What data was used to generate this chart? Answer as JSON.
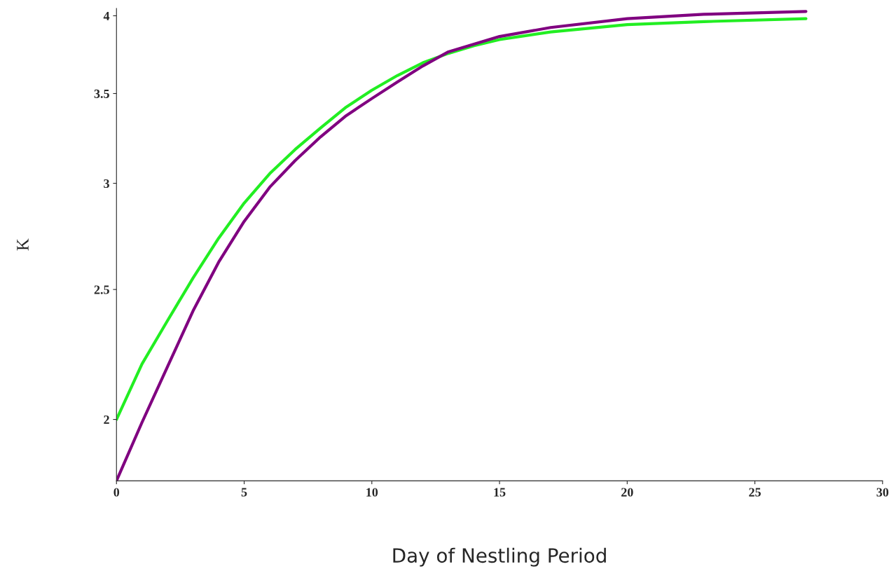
{
  "chart_data": {
    "type": "line",
    "xlabel": "Day of Nestling Period",
    "ylabel": "K",
    "log": "y",
    "xlim": [
      0,
      30
    ],
    "xticks": [
      0,
      5,
      10,
      15,
      20,
      25,
      30
    ],
    "ylim": [
      1.8,
      4.05
    ],
    "yticks": [
      2,
      2.5,
      3,
      3.5,
      4
    ],
    "grid": false,
    "marker": "none",
    "line_style": "solid",
    "x": [
      0,
      1,
      2,
      3,
      4,
      5,
      6,
      7,
      8,
      9,
      10,
      11,
      12,
      13,
      14,
      15,
      17,
      20,
      23,
      27
    ],
    "series": [
      {
        "color": "#22ee22",
        "values": [
          2.0,
          2.2,
          2.37,
          2.55,
          2.73,
          2.9,
          3.05,
          3.18,
          3.3,
          3.42,
          3.52,
          3.61,
          3.69,
          3.75,
          3.8,
          3.84,
          3.89,
          3.94,
          3.96,
          3.98
        ]
      },
      {
        "color": "#800080",
        "values": [
          1.8,
          1.99,
          2.19,
          2.41,
          2.62,
          2.81,
          2.98,
          3.12,
          3.25,
          3.37,
          3.47,
          3.57,
          3.67,
          3.76,
          3.81,
          3.86,
          3.92,
          3.98,
          4.01,
          4.03
        ]
      }
    ]
  }
}
